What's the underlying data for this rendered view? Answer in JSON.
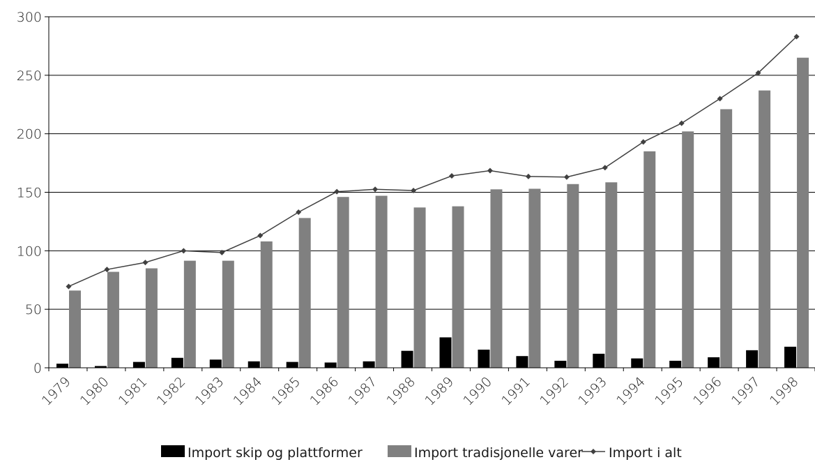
{
  "chart_data": {
    "type": "bar",
    "categories": [
      "1979",
      "1980",
      "1981",
      "1982",
      "1983",
      "1984",
      "1985",
      "1986",
      "1987",
      "1988",
      "1989",
      "1990",
      "1991",
      "1992",
      "1993",
      "1994",
      "1995",
      "1996",
      "1997",
      "1998"
    ],
    "series": [
      {
        "name": "Import skip og plattformer",
        "kind": "bar",
        "color": "#000000",
        "values": [
          3.5,
          1.5,
          5,
          8.5,
          7,
          5.5,
          5,
          4.5,
          5.5,
          14.5,
          26,
          15.5,
          10,
          6,
          12,
          8,
          6,
          9,
          15,
          18
        ]
      },
      {
        "name": "Import tradisjonelle varer",
        "kind": "bar",
        "color": "#808080",
        "values": [
          66,
          82,
          85,
          91.5,
          91.5,
          108,
          128,
          146,
          147,
          137,
          138,
          152.5,
          153,
          157,
          158.5,
          185,
          202,
          221,
          237,
          265
        ]
      },
      {
        "name": "Import i alt",
        "kind": "line",
        "color": "#404040",
        "marker": "diamond",
        "values": [
          69.5,
          84,
          90,
          100,
          98.5,
          113,
          133,
          150.5,
          152.5,
          151.5,
          164,
          168.5,
          163.5,
          163,
          171,
          193,
          209,
          230,
          252,
          283
        ]
      }
    ],
    "yticks": [
      "0",
      "50",
      "100",
      "150",
      "200",
      "250",
      "300"
    ],
    "ylim": [
      0,
      300
    ],
    "grid": true,
    "legend_position": "bottom"
  }
}
